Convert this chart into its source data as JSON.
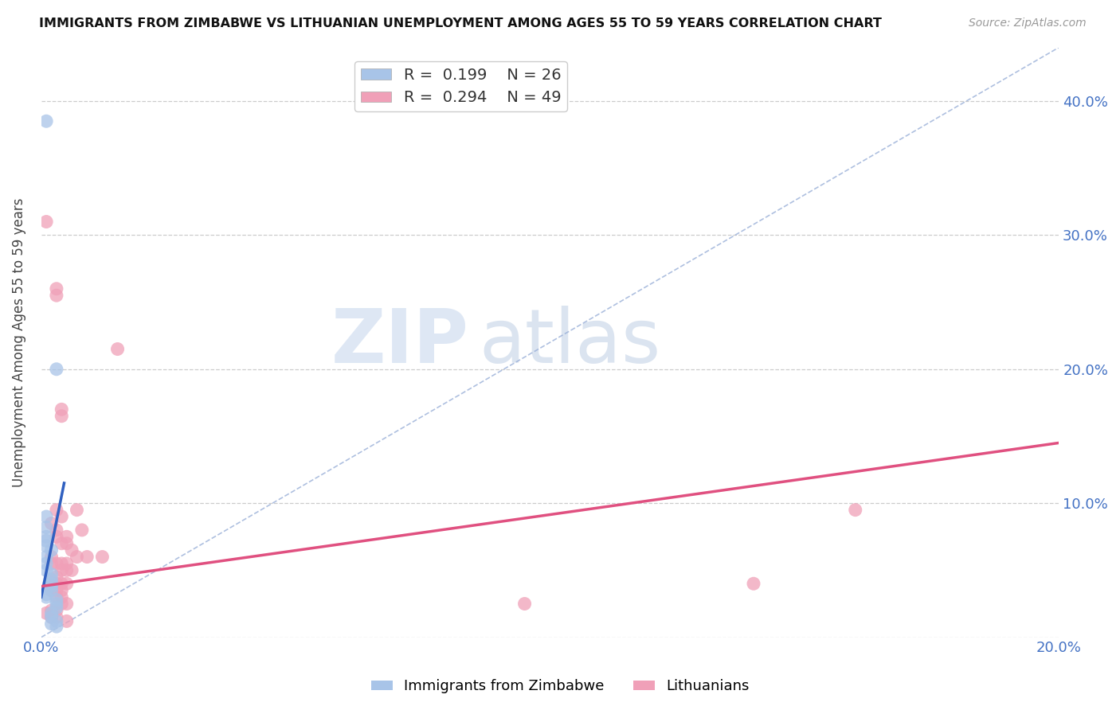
{
  "title": "IMMIGRANTS FROM ZIMBABWE VS LITHUANIAN UNEMPLOYMENT AMONG AGES 55 TO 59 YEARS CORRELATION CHART",
  "source": "Source: ZipAtlas.com",
  "ylabel": "Unemployment Among Ages 55 to 59 years",
  "xlim": [
    0.0,
    0.2
  ],
  "ylim": [
    0.0,
    0.44
  ],
  "zim_R": 0.199,
  "zim_N": 26,
  "lit_R": 0.294,
  "lit_N": 49,
  "zim_color": "#a8c4e8",
  "lit_color": "#f0a0b8",
  "zim_line_color": "#3060C0",
  "lit_line_color": "#E05080",
  "diagonal_color": "#9ab0d8",
  "watermark_zip": "ZIP",
  "watermark_atlas": "atlas",
  "zim_scatter": [
    [
      0.001,
      0.385
    ],
    [
      0.003,
      0.2
    ],
    [
      0.001,
      0.09
    ],
    [
      0.001,
      0.082
    ],
    [
      0.001,
      0.075
    ],
    [
      0.001,
      0.072
    ],
    [
      0.001,
      0.068
    ],
    [
      0.002,
      0.065
    ],
    [
      0.001,
      0.06
    ],
    [
      0.001,
      0.055
    ],
    [
      0.001,
      0.05
    ],
    [
      0.002,
      0.047
    ],
    [
      0.002,
      0.043
    ],
    [
      0.002,
      0.04
    ],
    [
      0.002,
      0.038
    ],
    [
      0.002,
      0.035
    ],
    [
      0.001,
      0.032
    ],
    [
      0.001,
      0.03
    ],
    [
      0.003,
      0.028
    ],
    [
      0.003,
      0.025
    ],
    [
      0.003,
      0.022
    ],
    [
      0.002,
      0.018
    ],
    [
      0.002,
      0.015
    ],
    [
      0.003,
      0.012
    ],
    [
      0.002,
      0.01
    ],
    [
      0.003,
      0.008
    ]
  ],
  "lit_scatter": [
    [
      0.001,
      0.31
    ],
    [
      0.003,
      0.26
    ],
    [
      0.003,
      0.255
    ],
    [
      0.004,
      0.17
    ],
    [
      0.004,
      0.165
    ],
    [
      0.015,
      0.215
    ],
    [
      0.003,
      0.095
    ],
    [
      0.004,
      0.09
    ],
    [
      0.002,
      0.085
    ],
    [
      0.003,
      0.08
    ],
    [
      0.003,
      0.075
    ],
    [
      0.004,
      0.07
    ],
    [
      0.005,
      0.075
    ],
    [
      0.005,
      0.07
    ],
    [
      0.006,
      0.065
    ],
    [
      0.007,
      0.06
    ],
    [
      0.002,
      0.06
    ],
    [
      0.002,
      0.055
    ],
    [
      0.003,
      0.055
    ],
    [
      0.004,
      0.055
    ],
    [
      0.005,
      0.055
    ],
    [
      0.004,
      0.05
    ],
    [
      0.005,
      0.05
    ],
    [
      0.006,
      0.05
    ],
    [
      0.003,
      0.045
    ],
    [
      0.003,
      0.04
    ],
    [
      0.004,
      0.04
    ],
    [
      0.005,
      0.04
    ],
    [
      0.002,
      0.038
    ],
    [
      0.002,
      0.035
    ],
    [
      0.003,
      0.035
    ],
    [
      0.004,
      0.035
    ],
    [
      0.003,
      0.03
    ],
    [
      0.004,
      0.03
    ],
    [
      0.004,
      0.025
    ],
    [
      0.005,
      0.025
    ],
    [
      0.002,
      0.02
    ],
    [
      0.003,
      0.02
    ],
    [
      0.001,
      0.018
    ],
    [
      0.002,
      0.015
    ],
    [
      0.003,
      0.015
    ],
    [
      0.005,
      0.012
    ],
    [
      0.007,
      0.095
    ],
    [
      0.008,
      0.08
    ],
    [
      0.009,
      0.06
    ],
    [
      0.012,
      0.06
    ],
    [
      0.16,
      0.095
    ],
    [
      0.14,
      0.04
    ],
    [
      0.095,
      0.025
    ]
  ],
  "zim_line_x": [
    0.0,
    0.0045
  ],
  "zim_line_y": [
    0.03,
    0.115
  ],
  "lit_line_x": [
    0.0,
    0.2
  ],
  "lit_line_y": [
    0.038,
    0.145
  ]
}
